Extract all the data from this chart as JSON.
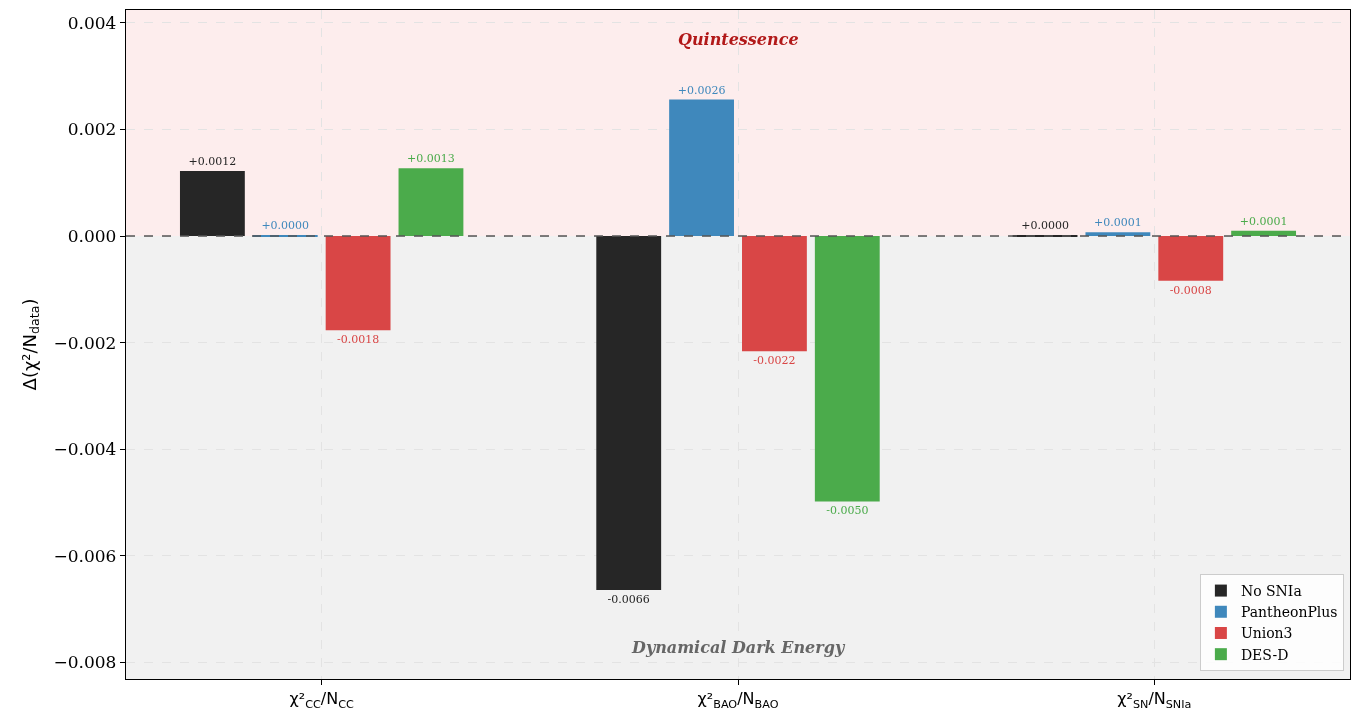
{
  "chart_data": {
    "type": "bar",
    "categories": [
      "χ²$_{CC}$/N$_{CC}$",
      "χ²$_{BAO}$/N$_{BAO}$",
      "χ²$_{SN}$/N$_{SNIa}$"
    ],
    "ylabel": "Δ(χ²/N$_{data}$)",
    "series": [
      {
        "name": "No SNIa",
        "color": "#262626",
        "values": [
          0.00122,
          -0.00664,
          1e-05
        ],
        "value_labels": [
          "+0.0012",
          "-0.0066",
          "+0.0000"
        ]
      },
      {
        "name": "PantheonPlus",
        "color": "#3f88bc",
        "values": [
          2e-05,
          0.00256,
          7e-05
        ],
        "value_labels": [
          "+0.0000",
          "+0.0026",
          "+0.0001"
        ]
      },
      {
        "name": "Union3",
        "color": "#d94646",
        "values": [
          -0.00177,
          -0.00216,
          -0.00084
        ],
        "value_labels": [
          "-0.0018",
          "-0.0022",
          "-0.0008"
        ]
      },
      {
        "name": "DES-D",
        "color": "#4bab4b",
        "values": [
          0.00127,
          -0.00498,
          0.0001
        ],
        "value_labels": [
          "+0.0013",
          "-0.0050",
          "+0.0001"
        ]
      }
    ],
    "ylim": [
      -0.00831,
      0.00424
    ],
    "yticks": [
      {
        "value": -0.008,
        "label": "−0.008"
      },
      {
        "value": -0.006,
        "label": "−0.006"
      },
      {
        "value": -0.004,
        "label": "−0.004"
      },
      {
        "value": -0.002,
        "label": "−0.002"
      },
      {
        "value": 0,
        "label": "0.000"
      },
      {
        "value": 0.002,
        "label": "0.002"
      },
      {
        "value": 0.004,
        "label": "0.004"
      }
    ],
    "bands": [
      {
        "axis": "y",
        "from": 0,
        "to": 0.00424,
        "label": "Quintessence",
        "color": "#fdeded"
      },
      {
        "axis": "y",
        "from": -0.00831,
        "to": 0,
        "label": "Dynamical Dark Energy",
        "color": "#f1f1f1"
      }
    ],
    "ref_lines": [
      {
        "axis": "y",
        "value": 0,
        "color": "#555555",
        "line_style": "dashed"
      }
    ],
    "grid": true,
    "legend": "bottom right"
  }
}
